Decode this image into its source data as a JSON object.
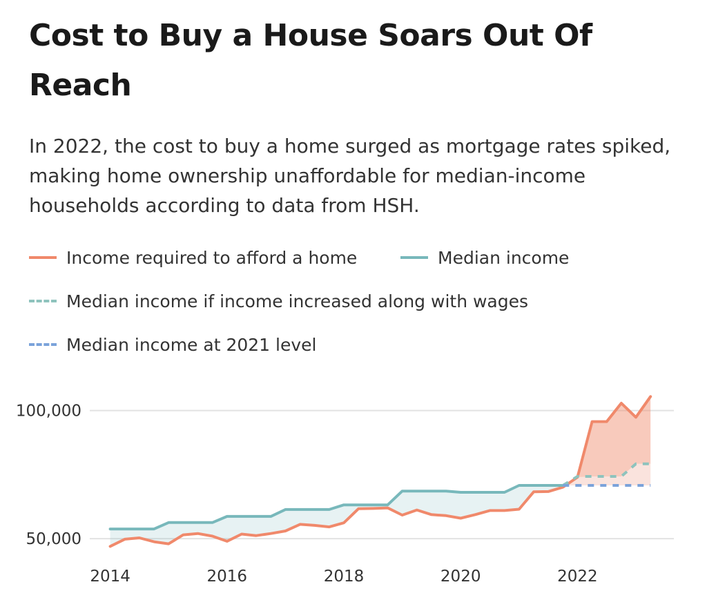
{
  "title": "Cost to Buy a House Soars Out Of Reach",
  "subtitle": "In 2022, the cost to buy a home surged as mortgage rates spiked, making home ownership unaffordable for median-income households according to data from HSH.",
  "legend": [
    {
      "label": "Income required to afford a home",
      "color": "#f0896b",
      "style": "solid"
    },
    {
      "label": "Median income",
      "color": "#78b8bb",
      "style": "solid"
    },
    {
      "label": "Median income if income increased along with wages",
      "color": "#8ec3bd",
      "style": "dashed"
    },
    {
      "label": "Median income at 2021 level",
      "color": "#7ba3da",
      "style": "dashed"
    }
  ],
  "chart_data": {
    "type": "line",
    "x_ticks": [
      "2014",
      "2016",
      "2018",
      "2020",
      "2022"
    ],
    "y_ticks": [
      "50,000",
      "100,000"
    ],
    "ylim": [
      46000,
      108000
    ],
    "xlim": [
      2013.65,
      2023.65
    ],
    "grid": true,
    "series": [
      {
        "name": "Income required to afford a home",
        "color": "#f0896b",
        "style": "solid",
        "x": [
          2014.0,
          2014.25,
          2014.5,
          2014.75,
          2015.0,
          2015.25,
          2015.5,
          2015.75,
          2016.0,
          2016.25,
          2016.5,
          2016.75,
          2017.0,
          2017.25,
          2017.5,
          2017.75,
          2018.0,
          2018.25,
          2018.5,
          2018.75,
          2019.0,
          2019.25,
          2019.5,
          2019.75,
          2020.0,
          2020.25,
          2020.5,
          2020.75,
          2021.0,
          2021.25,
          2021.5,
          2021.75,
          2022.0,
          2022.25,
          2022.5,
          2022.75,
          2023.0,
          2023.25
        ],
        "values": [
          47000,
          49800,
          50300,
          48800,
          48000,
          51500,
          52000,
          51000,
          49000,
          51800,
          51200,
          52000,
          53000,
          55600,
          55200,
          54600,
          56200,
          61700,
          61800,
          62000,
          59200,
          61200,
          59400,
          59000,
          58000,
          59400,
          61000,
          61000,
          61500,
          68300,
          68400,
          70100,
          74000,
          95700,
          95700,
          102900,
          97400,
          105500
        ]
      },
      {
        "name": "Median income",
        "color": "#78b8bb",
        "style": "solid",
        "x": [
          2014.0,
          2014.25,
          2014.5,
          2014.75,
          2015.0,
          2015.25,
          2015.5,
          2015.75,
          2016.0,
          2016.25,
          2016.5,
          2016.75,
          2017.0,
          2017.25,
          2017.5,
          2017.75,
          2018.0,
          2018.25,
          2018.5,
          2018.75,
          2019.0,
          2019.25,
          2019.5,
          2019.75,
          2020.0,
          2020.25,
          2020.5,
          2020.75,
          2021.0,
          2021.25,
          2021.5,
          2021.75
        ],
        "values": [
          53800,
          53800,
          53800,
          53800,
          56300,
          56300,
          56300,
          56300,
          58700,
          58700,
          58700,
          58700,
          61400,
          61400,
          61400,
          61400,
          63200,
          63200,
          63200,
          63200,
          68600,
          68600,
          68600,
          68600,
          68100,
          68100,
          68100,
          68100,
          70800,
          70800,
          70800,
          70800
        ]
      },
      {
        "name": "Median income if income increased along with wages",
        "color": "#8ec3bd",
        "style": "dashed",
        "x": [
          2021.75,
          2022.0,
          2022.25,
          2022.5,
          2022.75,
          2023.0,
          2023.25
        ],
        "values": [
          70800,
          74300,
          74300,
          74300,
          74300,
          79200,
          79200
        ]
      },
      {
        "name": "Median income at 2021 level",
        "color": "#7ba3da",
        "style": "dashed",
        "x": [
          2021.75,
          2023.25
        ],
        "values": [
          70800,
          70800
        ]
      }
    ]
  }
}
